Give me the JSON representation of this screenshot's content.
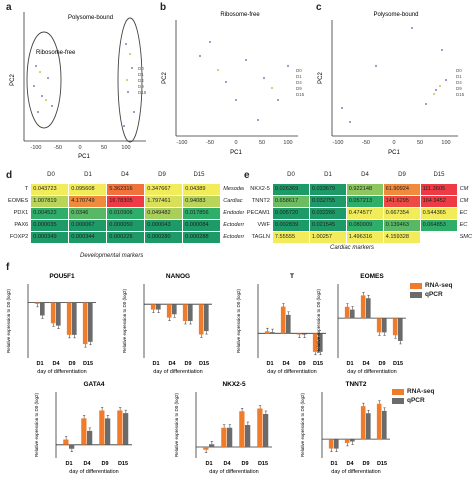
{
  "panels": {
    "a": {
      "letter": "a",
      "xlabel": "PC1",
      "ylabel": "PC2",
      "annot_left": "Ribosome-free",
      "annot_right": "Polysome-bound",
      "xticks": [
        "-100",
        "-50",
        "0",
        "50",
        "100"
      ],
      "legend": [
        "D0",
        "D1",
        "D4",
        "D9",
        "D15"
      ]
    },
    "b": {
      "letter": "b",
      "title": "Ribosome-free",
      "xlabel": "PC1",
      "ylabel": "PC2",
      "xticks": [
        "-100",
        "-50",
        "0",
        "50",
        "100"
      ],
      "legend": [
        "D0",
        "D1",
        "D4",
        "D9",
        "D15"
      ]
    },
    "c": {
      "letter": "c",
      "title": "Polysome-bound",
      "xlabel": "PC1",
      "ylabel": "PC2",
      "xticks": [
        "-100",
        "-50",
        "0",
        "50",
        "100"
      ],
      "legend": [
        "D0",
        "D1",
        "D4",
        "D9",
        "D15"
      ]
    }
  },
  "heatmap_d": {
    "letter": "d",
    "columns": [
      "D0",
      "D1",
      "D4",
      "D9",
      "D15"
    ],
    "rows": [
      {
        "gene": "T",
        "values": [
          "0.043723",
          "0.095608",
          "5.362316",
          "0.347667",
          "0.04389"
        ],
        "colors": [
          "#f2ec5a",
          "#f2ec5a",
          "#f0733c",
          "#f2ec5a",
          "#f2ec5a"
        ],
        "category": "Mesoderm"
      },
      {
        "gene": "EOMES",
        "values": [
          "1.007819",
          "4.170749",
          "16.78305",
          "1.797461",
          "0.94083"
        ],
        "colors": [
          "#b8d55a",
          "#f08a3c",
          "#ee3a44",
          "#d8e05a",
          "#b8d55a"
        ],
        "category": "Cardiac mesoderm"
      },
      {
        "gene": "PDX1",
        "values": [
          "0.004522",
          "0.0346",
          "0.010906",
          "0.049482",
          "0.017856"
        ],
        "colors": [
          "#2fae6a",
          "#58b866",
          "#2fae6a",
          "#a8cf5c",
          "#2fae6a"
        ],
        "category": "Endoderm"
      },
      {
        "gene": "PAX6",
        "values": [
          "0.000035",
          "0.000067",
          "0.000050",
          "0.000043",
          "0.000084"
        ],
        "colors": [
          "#1d9a68",
          "#1d9a68",
          "#1d9a68",
          "#1d9a68",
          "#1d9a68"
        ],
        "category": "Ectoderm"
      },
      {
        "gene": "FOXP2",
        "values": [
          "0.000349",
          "0.000344",
          "0.000226",
          "0.000280",
          "0.000288"
        ],
        "colors": [
          "#1d9a68",
          "#1d9a68",
          "#1d9a68",
          "#1d9a68",
          "#1d9a68"
        ],
        "category": "Ectoderm"
      }
    ],
    "footer": "Developmental markers"
  },
  "heatmap_e": {
    "letter": "e",
    "columns": [
      "D0",
      "D1",
      "D4",
      "D9",
      "D15"
    ],
    "rows": [
      {
        "gene": "NKX2-5",
        "values": [
          "0.026369",
          "0.033679",
          "0.922148",
          "61.90924",
          "111.3605"
        ],
        "colors": [
          "#1d9a68",
          "#1d9a68",
          "#8ec75f",
          "#f08a3c",
          "#ee3a44"
        ],
        "category": "CM"
      },
      {
        "gene": "TNNT2",
        "values": [
          "0.658617",
          "0.032755",
          "0.057213",
          "141.6295",
          "164.9452"
        ],
        "colors": [
          "#6cbd62",
          "#1d9a68",
          "#2fae6a",
          "#ee4a44",
          "#ee3a44"
        ],
        "category": "CM"
      },
      {
        "gene": "PECAM1",
        "values": [
          "0.005720",
          "0.032266",
          "0.474577",
          "0.667354",
          "0.544365"
        ],
        "colors": [
          "#1d9a68",
          "#1d9a68",
          "#f2ec5a",
          "#f2ec5a",
          "#f2ec5a"
        ],
        "category": "EC"
      },
      {
        "gene": "VWF",
        "values": [
          "0.002839",
          "0.021545",
          "0.080009",
          "0.139463",
          "0.064853"
        ],
        "colors": [
          "#1d9a68",
          "#1d9a68",
          "#2fae6a",
          "#58b866",
          "#2fae6a"
        ],
        "category": "EC"
      },
      {
        "gene": "TAGLN",
        "values": [
          "7.55555",
          "1.00257",
          "1.496316",
          "4.159328",
          ""
        ],
        "colors": [
          "#f2ec5a",
          "#f2ec5a",
          "#f2ec5a",
          "#f2ec5a",
          "#ffffff"
        ],
        "category": "SMC"
      }
    ],
    "footer": "Cardiac markers"
  },
  "panel_f": {
    "letter": "f",
    "ylabel": "Relative expression to D0 (log2)",
    "xlabel": "day of differentiation",
    "legend": [
      "RNA-seq",
      "qPCR"
    ],
    "colors": {
      "rnaseq": "#f07b2a",
      "qpcr": "#6b6b6b"
    }
  },
  "chart_data": [
    {
      "type": "bar",
      "title": "POU5F1",
      "categories": [
        "D1",
        "D4",
        "D9",
        "D15"
      ],
      "ylim": [
        -12,
        4
      ],
      "series": [
        {
          "name": "RNA-seq",
          "values": [
            -0.3,
            -4.5,
            -7.0,
            -9.0
          ]
        },
        {
          "name": "qPCR",
          "values": [
            -2.8,
            -5.0,
            -7.0,
            -8.5
          ]
        }
      ]
    },
    {
      "type": "bar",
      "title": "NANOG",
      "categories": [
        "D1",
        "D4",
        "D9",
        "D15"
      ],
      "ylim": [
        -8,
        3
      ],
      "series": [
        {
          "name": "RNA-seq",
          "values": [
            -0.8,
            -2.0,
            -2.5,
            -4.5
          ]
        },
        {
          "name": "qPCR",
          "values": [
            -0.8,
            -1.5,
            -2.5,
            -4.0
          ]
        }
      ]
    },
    {
      "type": "bar",
      "title": "T",
      "categories": [
        "D1",
        "D4",
        "D9",
        "D15"
      ],
      "ylim": [
        -6,
        12
      ],
      "series": [
        {
          "name": "RNA-seq",
          "values": [
            0.5,
            6.5,
            -0.3,
            -4.5
          ]
        },
        {
          "name": "qPCR",
          "values": [
            0.3,
            4.5,
            -0.3,
            -4.5
          ]
        }
      ]
    },
    {
      "type": "bar",
      "title": "EOMES",
      "categories": [
        "D1",
        "D4",
        "D9",
        "D15"
      ],
      "ylim": [
        -7,
        6
      ],
      "series": [
        {
          "name": "RNA-seq",
          "values": [
            2.0,
            4.0,
            -2.5,
            -3.0
          ]
        },
        {
          "name": "qPCR",
          "values": [
            1.5,
            3.5,
            -2.5,
            -4.0
          ]
        }
      ]
    },
    {
      "type": "bar",
      "title": "GATA4",
      "categories": [
        "D1",
        "D4",
        "D9",
        "D15"
      ],
      "ylim": [
        -2,
        8
      ],
      "series": [
        {
          "name": "RNA-seq",
          "values": [
            0.8,
            4.0,
            5.2,
            5.2
          ]
        },
        {
          "name": "qPCR",
          "values": [
            -0.6,
            2.1,
            4.0,
            4.8
          ]
        }
      ]
    },
    {
      "type": "bar",
      "title": "NKX2-5",
      "categories": [
        "D1",
        "D4",
        "D9",
        "D15"
      ],
      "ylim": [
        -2,
        10
      ],
      "series": [
        {
          "name": "RNA-seq",
          "values": [
            -0.5,
            3.5,
            6.5,
            7.0
          ]
        },
        {
          "name": "qPCR",
          "values": [
            0.5,
            3.5,
            4.0,
            6.0
          ]
        }
      ]
    },
    {
      "type": "bar",
      "title": "TNNT2",
      "categories": [
        "D1",
        "D4",
        "D9",
        "D15"
      ],
      "ylim": [
        -4,
        10
      ],
      "series": [
        {
          "name": "RNA-seq",
          "values": [
            -2.0,
            -0.8,
            7.0,
            7.5
          ]
        },
        {
          "name": "qPCR",
          "values": [
            -2.0,
            -0.5,
            5.5,
            6.0
          ]
        }
      ]
    }
  ]
}
